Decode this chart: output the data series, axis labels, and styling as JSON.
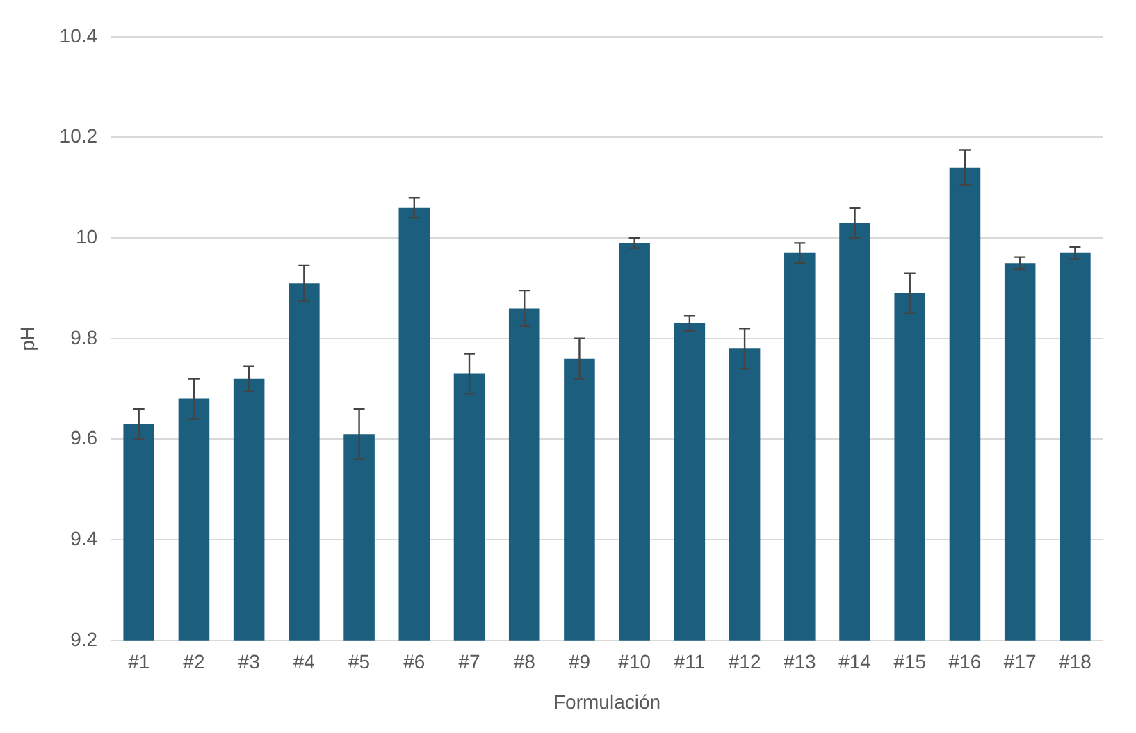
{
  "chart_data": {
    "type": "bar",
    "xlabel": "Formulación",
    "ylabel": "pH",
    "categories": [
      "#1",
      "#2",
      "#3",
      "#4",
      "#5",
      "#6",
      "#7",
      "#8",
      "#9",
      "#10",
      "#11",
      "#12",
      "#13",
      "#14",
      "#15",
      "#16",
      "#17",
      "#18"
    ],
    "values": [
      9.63,
      9.68,
      9.72,
      9.91,
      9.61,
      10.06,
      9.73,
      9.86,
      9.76,
      9.99,
      9.83,
      9.78,
      9.97,
      10.03,
      9.89,
      10.14,
      9.95,
      9.97
    ],
    "errors": [
      0.03,
      0.04,
      0.025,
      0.035,
      0.05,
      0.02,
      0.04,
      0.035,
      0.04,
      0.01,
      0.015,
      0.04,
      0.02,
      0.03,
      0.04,
      0.035,
      0.012,
      0.012
    ],
    "color": "#1b5e7e",
    "ylim": [
      9.2,
      10.4
    ],
    "yticks": [
      9.2,
      9.4,
      9.6,
      9.8,
      10,
      10.2,
      10.4
    ],
    "grid": "y",
    "legend": false
  }
}
